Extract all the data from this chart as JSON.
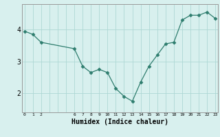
{
  "x": [
    0,
    1,
    2,
    6,
    7,
    8,
    9,
    10,
    11,
    12,
    13,
    14,
    15,
    16,
    17,
    18,
    19,
    20,
    21,
    22,
    23
  ],
  "y": [
    3.95,
    3.85,
    3.6,
    3.4,
    2.85,
    2.65,
    2.75,
    2.65,
    2.15,
    1.9,
    1.75,
    2.35,
    2.85,
    3.2,
    3.55,
    3.6,
    4.3,
    4.45,
    4.45,
    4.55,
    4.35
  ],
  "line_color": "#2e7d6e",
  "marker": "D",
  "marker_size": 2.5,
  "bg_color": "#d8f0ee",
  "grid_color": "#aed8d4",
  "xlabel": "Humidex (Indice chaleur)",
  "yticks": [
    2,
    3,
    4
  ],
  "all_xtick_positions": [
    0,
    1,
    2,
    3,
    4,
    5,
    6,
    7,
    8,
    9,
    10,
    11,
    12,
    13,
    14,
    15,
    16,
    17,
    18,
    19,
    20,
    21,
    22,
    23
  ],
  "labeled_xtick_positions": [
    0,
    1,
    2,
    6,
    7,
    8,
    9,
    10,
    11,
    12,
    13,
    14,
    15,
    16,
    17,
    18,
    19,
    20,
    21,
    22,
    23
  ],
  "labeled_xtick_labels": [
    "0",
    "1",
    "2",
    "6",
    "7",
    "8",
    "9",
    "10",
    "11",
    "12",
    "13",
    "14",
    "15",
    "16",
    "17",
    "18",
    "19",
    "20",
    "21",
    "22",
    "23"
  ],
  "ylim": [
    1.4,
    4.8
  ],
  "xlim": [
    -0.3,
    23.3
  ],
  "xlabel_fontsize": 7,
  "ytick_fontsize": 7,
  "xtick_fontsize": 4.5
}
